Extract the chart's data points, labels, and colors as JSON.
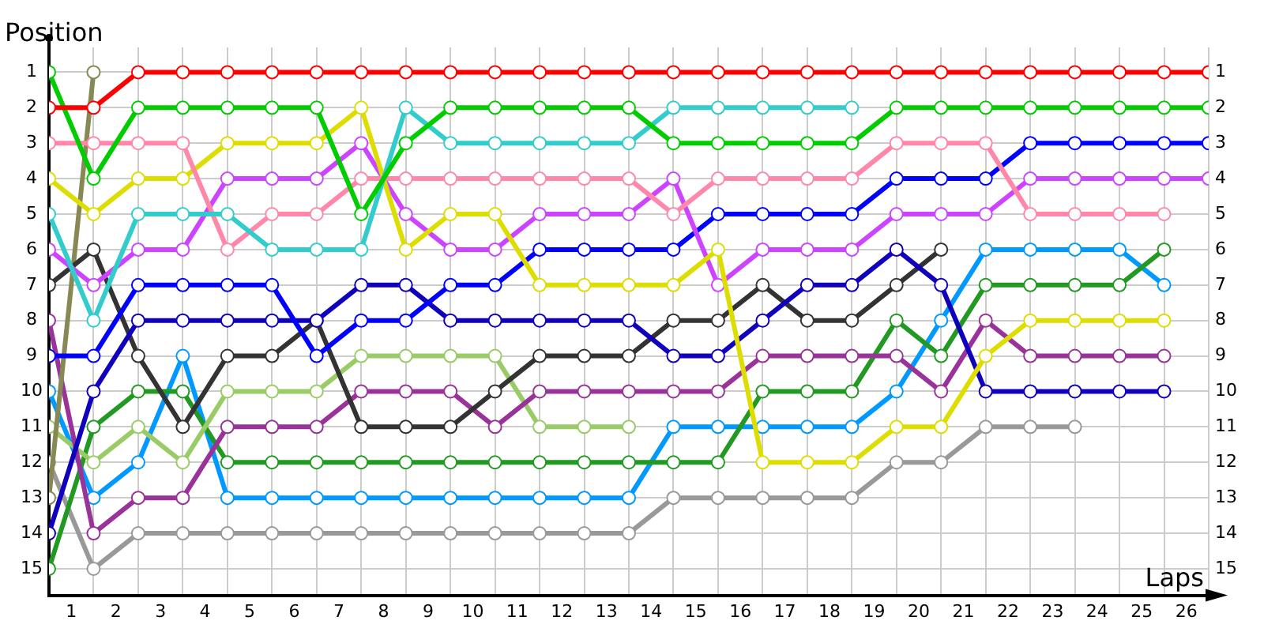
{
  "chart_data": {
    "type": "line",
    "xlabel": "Laps",
    "ylabel": "Position",
    "grid": true,
    "marker": "circle",
    "x": [
      0,
      1,
      2,
      3,
      4,
      5,
      6,
      7,
      8,
      9,
      10,
      11,
      12,
      13,
      14,
      15,
      16,
      17,
      18,
      19,
      20,
      21,
      22,
      23,
      24,
      25,
      26
    ],
    "xlim": [
      0,
      26
    ],
    "xticks": [
      {
        "value": 0,
        "label": null
      },
      {
        "value": 0.5,
        "label": "1"
      },
      {
        "value": 1,
        "label": null
      },
      {
        "value": 1.5,
        "label": "2"
      },
      {
        "value": 2,
        "label": null
      },
      {
        "value": 2.5,
        "label": "3"
      },
      {
        "value": 3,
        "label": null
      },
      {
        "value": 3.5,
        "label": "4"
      },
      {
        "value": 4,
        "label": null
      },
      {
        "value": 4.5,
        "label": "5"
      },
      {
        "value": 5,
        "label": null
      },
      {
        "value": 5.5,
        "label": "6"
      },
      {
        "value": 6,
        "label": null
      },
      {
        "value": 6.5,
        "label": "7"
      },
      {
        "value": 7,
        "label": null
      },
      {
        "value": 7.5,
        "label": "8"
      },
      {
        "value": 8,
        "label": null
      },
      {
        "value": 8.5,
        "label": "9"
      },
      {
        "value": 9,
        "label": null
      },
      {
        "value": 9.5,
        "label": "10"
      },
      {
        "value": 10,
        "label": null
      },
      {
        "value": 10.5,
        "label": "11"
      },
      {
        "value": 11,
        "label": null
      },
      {
        "value": 11.5,
        "label": "12"
      },
      {
        "value": 12,
        "label": null
      },
      {
        "value": 12.5,
        "label": "13"
      },
      {
        "value": 13,
        "label": null
      },
      {
        "value": 13.5,
        "label": "14"
      },
      {
        "value": 14,
        "label": null
      },
      {
        "value": 14.5,
        "label": "15"
      },
      {
        "value": 15,
        "label": null
      },
      {
        "value": 15.5,
        "label": "16"
      },
      {
        "value": 16,
        "label": null
      },
      {
        "value": 16.5,
        "label": "17"
      },
      {
        "value": 17,
        "label": null
      },
      {
        "value": 17.5,
        "label": "18"
      },
      {
        "value": 18,
        "label": null
      },
      {
        "value": 18.5,
        "label": "19"
      },
      {
        "value": 19,
        "label": null
      },
      {
        "value": 19.5,
        "label": "20"
      },
      {
        "value": 20,
        "label": null
      },
      {
        "value": 20.5,
        "label": "21"
      },
      {
        "value": 21,
        "label": null
      },
      {
        "value": 21.5,
        "label": "22"
      },
      {
        "value": 22,
        "label": null
      },
      {
        "value": 22.5,
        "label": "23"
      },
      {
        "value": 23,
        "label": null
      },
      {
        "value": 23.5,
        "label": "24"
      },
      {
        "value": 24,
        "label": null
      },
      {
        "value": 24.5,
        "label": "25"
      },
      {
        "value": 25,
        "label": null
      },
      {
        "value": 25.5,
        "label": "26"
      },
      {
        "value": 26,
        "label": null
      }
    ],
    "ylim": [
      15.75,
      0.3
    ],
    "yticks": [
      1,
      2,
      3,
      4,
      5,
      6,
      7,
      8,
      9,
      10,
      11,
      12,
      13,
      14,
      15
    ],
    "y2lim": [
      15.75,
      0.3
    ],
    "y2ticks": [
      1,
      2,
      3,
      4,
      5,
      6,
      7,
      8,
      9,
      10,
      11,
      12,
      13,
      14,
      15
    ],
    "series": [
      {
        "color": "#ff0000",
        "values": [
          2,
          2,
          1,
          1,
          1,
          1,
          1,
          1,
          1,
          1,
          1,
          1,
          1,
          1,
          1,
          1,
          1,
          1,
          1,
          1,
          1,
          1,
          1,
          1,
          1,
          1,
          1
        ]
      },
      {
        "color": "#00cc00",
        "values": [
          1,
          4,
          2,
          2,
          2,
          2,
          2,
          5,
          3,
          2,
          2,
          2,
          2,
          2,
          3,
          3,
          3,
          3,
          3,
          2,
          2,
          2,
          2,
          2,
          2,
          2,
          2
        ]
      },
      {
        "color": "#33cccc",
        "values": [
          5,
          8,
          5,
          5,
          5,
          6,
          6,
          6,
          2,
          3,
          3,
          3,
          3,
          3,
          2,
          2,
          2,
          2,
          2,
          null,
          null,
          null,
          null,
          null,
          null,
          null,
          null
        ]
      },
      {
        "color": "#ff88aa",
        "values": [
          3,
          3,
          3,
          3,
          6,
          5,
          5,
          4,
          4,
          4,
          4,
          4,
          4,
          4,
          5,
          4,
          4,
          4,
          4,
          3,
          3,
          3,
          5,
          5,
          5,
          5,
          null
        ]
      },
      {
        "color": "#dddd00",
        "values": [
          4,
          5,
          4,
          4,
          3,
          3,
          3,
          2,
          6,
          5,
          5,
          7,
          7,
          7,
          7,
          6,
          12,
          12,
          12,
          11,
          11,
          9,
          8,
          8,
          8,
          8,
          null
        ]
      },
      {
        "color": "#cc44ff",
        "values": [
          6,
          7,
          6,
          6,
          4,
          4,
          4,
          3,
          5,
          6,
          6,
          5,
          5,
          5,
          4,
          7,
          6,
          6,
          6,
          5,
          5,
          5,
          4,
          4,
          4,
          4,
          4
        ]
      },
      {
        "color": "#0000ff",
        "values": [
          9,
          9,
          7,
          7,
          7,
          7,
          9,
          8,
          8,
          7,
          7,
          6,
          6,
          6,
          6,
          5,
          5,
          5,
          5,
          4,
          4,
          4,
          3,
          3,
          3,
          3,
          3
        ]
      },
      {
        "color": "#1100bb",
        "values": [
          14,
          10,
          8,
          8,
          8,
          8,
          8,
          7,
          7,
          8,
          8,
          8,
          8,
          8,
          9,
          9,
          8,
          7,
          7,
          6,
          7,
          10,
          10,
          10,
          10,
          10,
          null
        ]
      },
      {
        "color": "#333333",
        "values": [
          7,
          6,
          9,
          11,
          9,
          9,
          8,
          11,
          11,
          11,
          10,
          9,
          9,
          9,
          8,
          8,
          7,
          8,
          8,
          7,
          6,
          null,
          null,
          null,
          null,
          null,
          null
        ]
      },
      {
        "color": "#888855",
        "values": [
          13,
          1,
          null,
          null,
          null,
          null,
          null,
          null,
          null,
          null,
          null,
          null,
          null,
          null,
          null,
          null,
          null,
          null,
          null,
          null,
          null,
          null,
          null,
          null,
          null,
          null,
          null
        ]
      },
      {
        "color": "#993399",
        "values": [
          8,
          14,
          13,
          13,
          11,
          11,
          11,
          10,
          10,
          10,
          11,
          10,
          10,
          10,
          10,
          10,
          9,
          9,
          9,
          9,
          10,
          8,
          9,
          9,
          9,
          9,
          null
        ]
      },
      {
        "color": "#99cc66",
        "values": [
          11,
          12,
          11,
          12,
          10,
          10,
          10,
          9,
          9,
          9,
          9,
          11,
          11,
          11,
          null,
          null,
          null,
          null,
          null,
          null,
          null,
          null,
          null,
          null,
          null,
          null,
          null
        ]
      },
      {
        "color": "#229922",
        "values": [
          15,
          11,
          10,
          10,
          12,
          12,
          12,
          12,
          12,
          12,
          12,
          12,
          12,
          12,
          12,
          12,
          10,
          10,
          10,
          8,
          9,
          7,
          7,
          7,
          7,
          6,
          null
        ]
      },
      {
        "color": "#0099ff",
        "values": [
          10,
          13,
          12,
          9,
          13,
          13,
          13,
          13,
          13,
          13,
          13,
          13,
          13,
          13,
          11,
          11,
          11,
          11,
          11,
          10,
          8,
          6,
          6,
          6,
          6,
          7,
          null
        ]
      },
      {
        "color": "#999999",
        "values": [
          12,
          15,
          14,
          14,
          14,
          14,
          14,
          14,
          14,
          14,
          14,
          14,
          14,
          14,
          13,
          13,
          13,
          13,
          13,
          12,
          12,
          11,
          11,
          11,
          null,
          null,
          null
        ]
      }
    ]
  }
}
